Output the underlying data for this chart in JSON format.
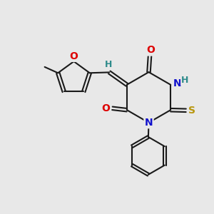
{
  "bg_color": "#e8e8e8",
  "bond_color": "#1a1a1a",
  "atom_colors": {
    "O": "#dd0000",
    "N": "#1111cc",
    "S": "#b8960c",
    "H_label": "#2e8b8b"
  },
  "lw": 1.5
}
